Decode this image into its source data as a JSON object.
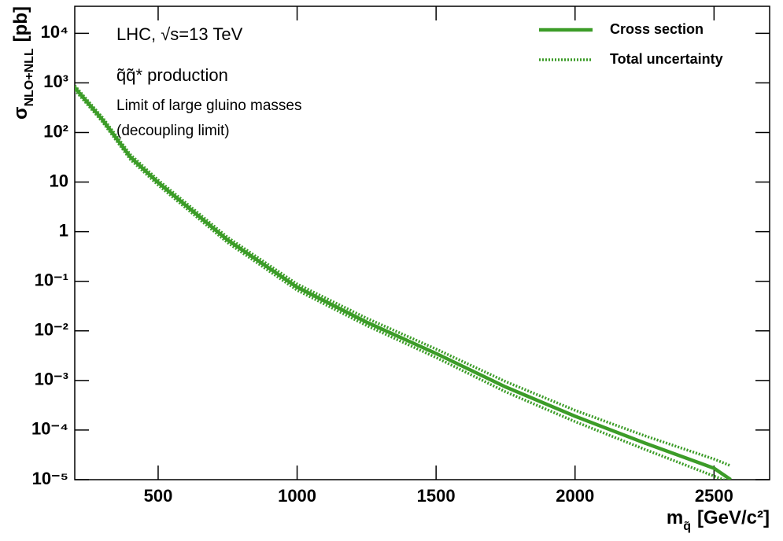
{
  "chart_data": {
    "type": "line",
    "annotations": [
      "LHC,  √s=13 TeV",
      "q̃q̃* production",
      "Limit of large gluino masses",
      "(decoupling limit)"
    ],
    "x_label": [
      "m",
      "q̃",
      "[GeV/c²]"
    ],
    "y_label": [
      "σ",
      "NLO+NLL",
      "[pb]"
    ],
    "x": [
      200,
      300,
      400,
      500,
      750,
      1000,
      1250,
      1500,
      1750,
      2000,
      2250,
      2500,
      2560
    ],
    "series": [
      {
        "name": "Cross section",
        "color": "#3c9c28",
        "style": "solid",
        "values": [
          800,
          180,
          32,
          9.8,
          0.68,
          0.076,
          0.015,
          0.0035,
          0.00074,
          0.00019,
          5.5e-05,
          1.7e-05,
          1e-05
        ]
      },
      {
        "name": "Total uncertainty",
        "color": "#3c9c28",
        "style": "dotted",
        "values": [
          880,
          200,
          36,
          11,
          0.77,
          0.088,
          0.018,
          0.0043,
          0.00095,
          0.00025,
          7.7e-05,
          2.6e-05,
          1.9e-05
        ]
      },
      {
        "name": null,
        "color": "#3c9c28",
        "style": "dotted",
        "values": [
          720,
          162,
          28.5,
          8.7,
          0.6,
          0.066,
          0.0128,
          0.0029,
          0.00059,
          0.000148,
          4.1e-05,
          1.18e-05,
          8.8e-06
        ]
      }
    ],
    "xlim": [
      200,
      2700
    ],
    "xticks": [
      500,
      1000,
      1500,
      2000,
      2500
    ],
    "ylim": [
      1e-05,
      35000
    ],
    "log_y": true,
    "yticks": [
      {
        "value": 1e-05,
        "label": "10⁻⁵"
      },
      {
        "value": 0.0001,
        "label": "10⁻⁴"
      },
      {
        "value": 0.001,
        "label": "10⁻³"
      },
      {
        "value": 0.01,
        "label": "10⁻²"
      },
      {
        "value": 0.1,
        "label": "10⁻¹"
      },
      1,
      10,
      {
        "value": 100,
        "label": "10²"
      },
      {
        "value": 1000,
        "label": "10³"
      },
      {
        "value": 10000,
        "label": "10⁴"
      }
    ],
    "legend": "upper right",
    "grid": false
  }
}
